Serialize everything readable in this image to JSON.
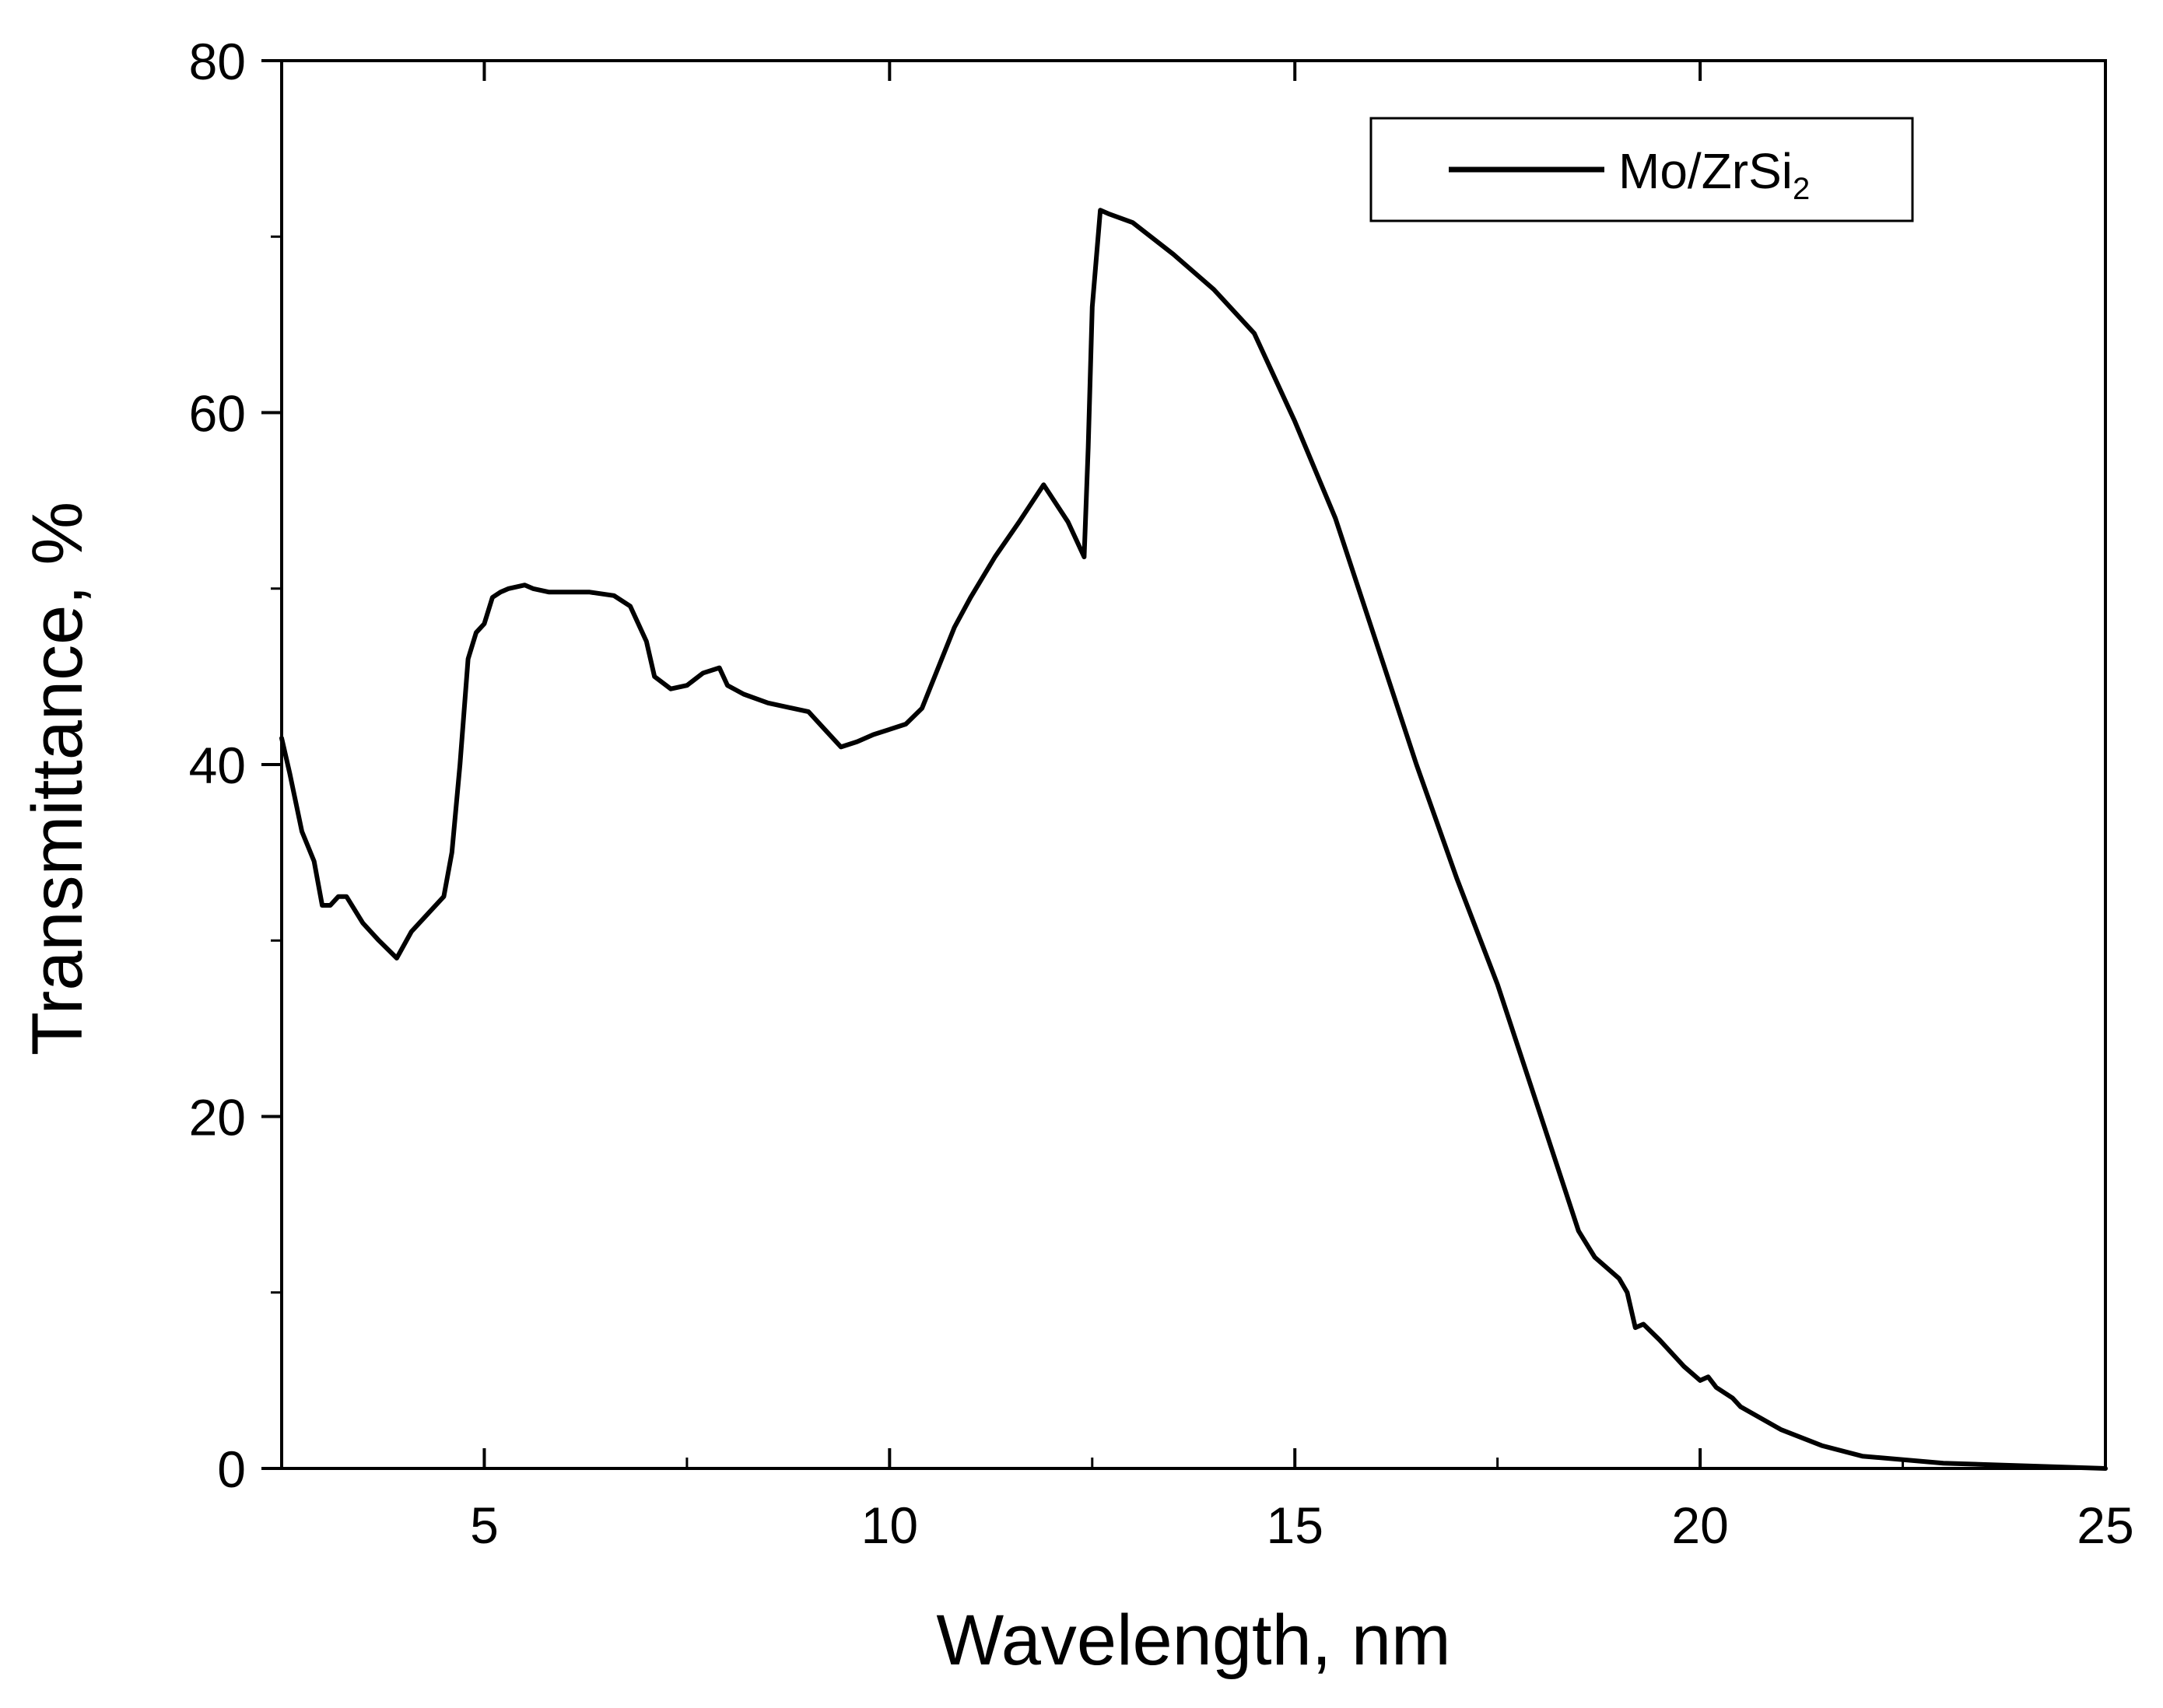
{
  "chart_data": {
    "type": "line",
    "title": "",
    "xlabel": "Wavelength, nm",
    "ylabel": "Transmittance, %",
    "xlim": [
      2.5,
      25
    ],
    "ylim": [
      0,
      80
    ],
    "x_ticks": [
      5,
      10,
      15,
      20,
      25
    ],
    "y_ticks": [
      0,
      20,
      40,
      60,
      80
    ],
    "x_tick_labels": [
      "5",
      "10",
      "15",
      "20",
      "25"
    ],
    "y_tick_labels": [
      "0",
      "20",
      "40",
      "60",
      "80"
    ],
    "grid": false,
    "legend_position": "top-right",
    "series": [
      {
        "name": "Mo/ZrSi",
        "name_subscript": "2",
        "color": "#000000",
        "x": [
          2.5,
          2.6,
          2.75,
          2.9,
          3.0,
          3.1,
          3.2,
          3.3,
          3.5,
          3.7,
          3.92,
          4.1,
          4.3,
          4.5,
          4.6,
          4.7,
          4.8,
          4.9,
          5.0,
          5.1,
          5.2,
          5.3,
          5.5,
          5.6,
          5.8,
          6.0,
          6.3,
          6.6,
          6.8,
          7.0,
          7.1,
          7.3,
          7.5,
          7.7,
          7.9,
          8.0,
          8.2,
          8.5,
          8.8,
          9.0,
          9.2,
          9.4,
          9.6,
          9.8,
          10.0,
          10.2,
          10.4,
          10.6,
          10.8,
          11.0,
          11.3,
          11.6,
          11.9,
          12.0,
          12.2,
          12.4,
          12.45,
          12.5,
          12.6,
          12.7,
          13.0,
          13.5,
          14.0,
          14.5,
          15.0,
          15.5,
          16.0,
          16.5,
          17.0,
          17.5,
          18.0,
          18.5,
          18.7,
          19.0,
          19.1,
          19.2,
          19.3,
          19.5,
          19.8,
          20.0,
          20.1,
          20.2,
          20.4,
          20.5,
          21.0,
          21.5,
          22.0,
          23.0,
          24.0,
          25.0
        ],
        "y": [
          41.5,
          39.5,
          36.2,
          34.5,
          32.0,
          32.0,
          32.5,
          32.5,
          31.0,
          30.0,
          29.0,
          30.5,
          31.5,
          32.5,
          35.0,
          40.0,
          46.0,
          47.5,
          48.0,
          49.5,
          49.8,
          50.0,
          50.2,
          50.0,
          49.8,
          49.8,
          49.8,
          49.6,
          49.0,
          47.0,
          45.0,
          44.3,
          44.5,
          45.2,
          45.5,
          44.5,
          44.0,
          43.5,
          43.2,
          43.0,
          42.0,
          41.0,
          41.3,
          41.7,
          42.0,
          42.3,
          43.2,
          45.5,
          47.8,
          49.5,
          51.8,
          53.8,
          55.9,
          55.2,
          53.8,
          51.8,
          58.0,
          66.0,
          71.5,
          71.3,
          70.8,
          69.0,
          67.0,
          64.5,
          59.5,
          54.0,
          47.0,
          40.0,
          33.5,
          27.5,
          20.5,
          13.5,
          12.0,
          10.8,
          10.0,
          8.0,
          8.2,
          7.3,
          5.8,
          5.0,
          5.2,
          4.6,
          4.0,
          3.5,
          2.2,
          1.3,
          0.7,
          0.3,
          0.15,
          0.0
        ]
      }
    ]
  }
}
